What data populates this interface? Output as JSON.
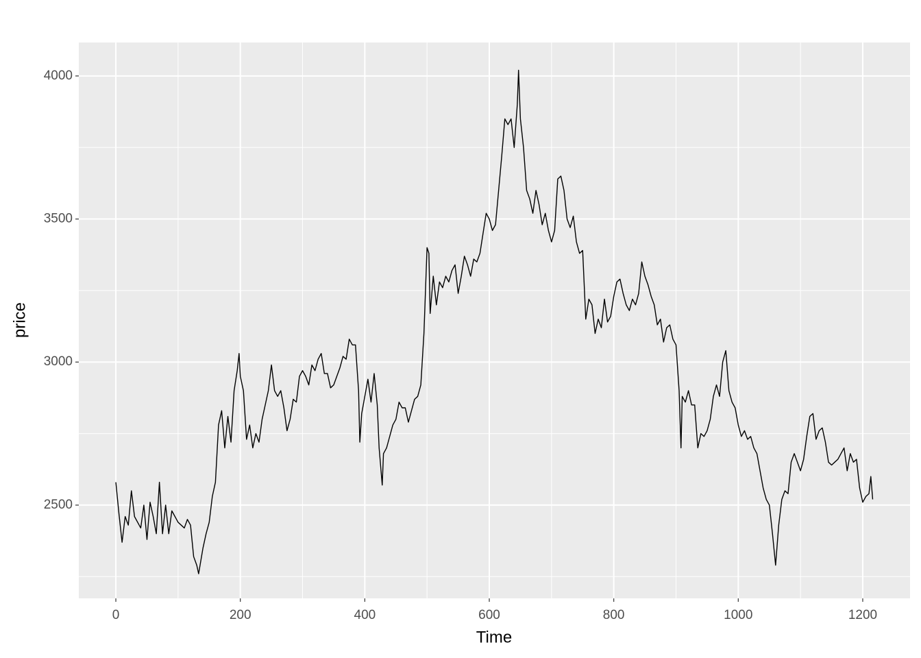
{
  "chart_data": {
    "type": "line",
    "x_label": "Time",
    "y_label": "price",
    "x": [
      0,
      5,
      10,
      15,
      20,
      25,
      30,
      40,
      45,
      50,
      55,
      60,
      65,
      70,
      75,
      80,
      85,
      90,
      100,
      110,
      115,
      120,
      125,
      130,
      133,
      140,
      145,
      150,
      155,
      160,
      165,
      170,
      175,
      180,
      185,
      190,
      195,
      198,
      200,
      205,
      210,
      215,
      220,
      225,
      230,
      235,
      240,
      245,
      250,
      255,
      260,
      265,
      270,
      275,
      280,
      285,
      290,
      295,
      300,
      305,
      310,
      315,
      320,
      325,
      330,
      335,
      340,
      345,
      350,
      355,
      360,
      365,
      370,
      375,
      380,
      385,
      390,
      392,
      395,
      400,
      405,
      410,
      415,
      420,
      423,
      428,
      430,
      435,
      440,
      445,
      450,
      455,
      460,
      465,
      470,
      475,
      480,
      485,
      490,
      495,
      500,
      503,
      505,
      510,
      515,
      520,
      525,
      530,
      535,
      540,
      545,
      550,
      555,
      560,
      565,
      570,
      575,
      580,
      585,
      590,
      595,
      600,
      605,
      610,
      615,
      620,
      625,
      630,
      635,
      640,
      645,
      647,
      650,
      655,
      660,
      665,
      670,
      675,
      680,
      685,
      690,
      695,
      700,
      705,
      710,
      715,
      720,
      725,
      730,
      735,
      740,
      745,
      750,
      755,
      760,
      765,
      770,
      775,
      780,
      785,
      790,
      795,
      800,
      805,
      810,
      815,
      820,
      825,
      830,
      835,
      840,
      845,
      850,
      855,
      860,
      865,
      870,
      875,
      880,
      885,
      890,
      895,
      900,
      905,
      908,
      910,
      915,
      920,
      925,
      930,
      935,
      940,
      945,
      950,
      955,
      960,
      965,
      970,
      975,
      980,
      985,
      990,
      995,
      1000,
      1005,
      1010,
      1015,
      1020,
      1025,
      1030,
      1035,
      1040,
      1045,
      1050,
      1055,
      1060,
      1065,
      1070,
      1075,
      1080,
      1085,
      1090,
      1095,
      1100,
      1105,
      1110,
      1115,
      1120,
      1125,
      1130,
      1135,
      1140,
      1145,
      1150,
      1155,
      1160,
      1165,
      1170,
      1175,
      1180,
      1185,
      1190,
      1195,
      1200,
      1205,
      1210,
      1213,
      1216
    ],
    "series": [
      {
        "name": "price",
        "color": "#000000",
        "values": [
          2580,
          2470,
          2370,
          2460,
          2430,
          2550,
          2460,
          2420,
          2500,
          2380,
          2510,
          2460,
          2400,
          2580,
          2400,
          2500,
          2400,
          2480,
          2440,
          2420,
          2450,
          2430,
          2320,
          2290,
          2260,
          2350,
          2400,
          2440,
          2530,
          2580,
          2780,
          2830,
          2700,
          2810,
          2720,
          2900,
          2970,
          3030,
          2950,
          2900,
          2730,
          2780,
          2700,
          2750,
          2720,
          2800,
          2850,
          2900,
          2990,
          2900,
          2880,
          2900,
          2840,
          2760,
          2800,
          2870,
          2860,
          2950,
          2970,
          2950,
          2920,
          2990,
          2970,
          3010,
          3030,
          2960,
          2960,
          2910,
          2920,
          2950,
          2980,
          3020,
          3010,
          3080,
          3060,
          3060,
          2900,
          2720,
          2820,
          2880,
          2940,
          2860,
          2960,
          2850,
          2700,
          2570,
          2680,
          2700,
          2740,
          2780,
          2800,
          2860,
          2840,
          2840,
          2790,
          2830,
          2870,
          2880,
          2920,
          3100,
          3400,
          3380,
          3170,
          3300,
          3200,
          3280,
          3260,
          3300,
          3280,
          3320,
          3340,
          3240,
          3300,
          3370,
          3340,
          3300,
          3360,
          3350,
          3380,
          3450,
          3520,
          3500,
          3460,
          3480,
          3600,
          3720,
          3850,
          3830,
          3850,
          3750,
          3900,
          4020,
          3850,
          3750,
          3600,
          3570,
          3520,
          3600,
          3550,
          3480,
          3520,
          3460,
          3420,
          3460,
          3640,
          3650,
          3600,
          3500,
          3470,
          3510,
          3420,
          3380,
          3390,
          3150,
          3220,
          3200,
          3100,
          3150,
          3120,
          3220,
          3140,
          3160,
          3230,
          3280,
          3290,
          3240,
          3200,
          3180,
          3220,
          3200,
          3240,
          3350,
          3300,
          3270,
          3230,
          3200,
          3130,
          3150,
          3070,
          3120,
          3130,
          3080,
          3060,
          2900,
          2700,
          2880,
          2860,
          2900,
          2850,
          2850,
          2700,
          2750,
          2740,
          2760,
          2800,
          2880,
          2920,
          2880,
          3000,
          3040,
          2900,
          2860,
          2840,
          2780,
          2740,
          2760,
          2730,
          2740,
          2700,
          2680,
          2620,
          2560,
          2520,
          2500,
          2400,
          2290,
          2430,
          2520,
          2550,
          2540,
          2650,
          2680,
          2650,
          2620,
          2660,
          2740,
          2810,
          2820,
          2730,
          2760,
          2770,
          2720,
          2650,
          2640,
          2650,
          2660,
          2680,
          2700,
          2620,
          2680,
          2650,
          2660,
          2560,
          2510,
          2530,
          2540,
          2600,
          2520
        ]
      }
    ],
    "xlim": [
      -59.5,
      1276
    ],
    "ylim": [
      2174,
      4117
    ],
    "xticks": [
      0,
      200,
      400,
      600,
      800,
      1000,
      1200
    ],
    "yticks": [
      2500,
      3000,
      3500,
      4000
    ],
    "x_minor_grid": [
      100,
      300,
      500,
      700,
      900,
      1100
    ],
    "y_minor_grid": [
      2250,
      2750,
      3250,
      3750
    ],
    "grid": true,
    "panel_color": "#ebebeb"
  }
}
